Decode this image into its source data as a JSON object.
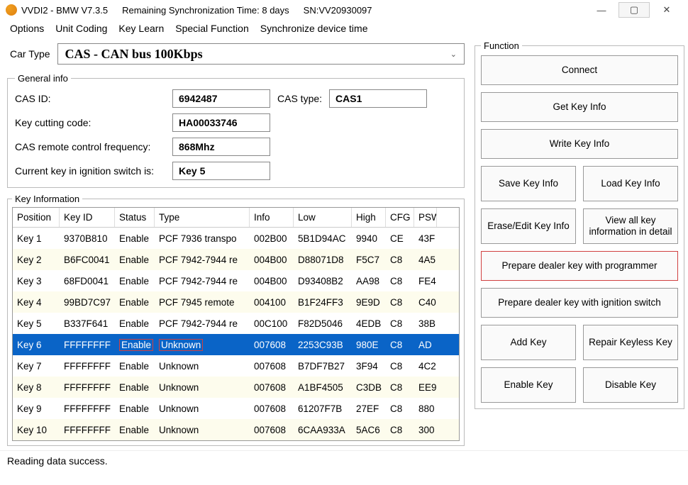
{
  "title": {
    "app": "VVDI2 - BMW V7.3.5",
    "sync": "Remaining Synchronization Time: 8 days",
    "sn": "SN:VV20930097"
  },
  "menu": {
    "options": "Options",
    "unit_coding": "Unit Coding",
    "key_learn": "Key Learn",
    "special_function": "Special Function",
    "sync_time": "Synchronize device time"
  },
  "cartype": {
    "label": "Car Type",
    "value": "CAS - CAN bus 100Kbps"
  },
  "general": {
    "legend": "General info",
    "cas_id_label": "CAS ID:",
    "cas_id": "6942487",
    "cas_type_label": "CAS type:",
    "cas_type": "CAS1",
    "cut_label": "Key cutting code:",
    "cut_code": "HA00033746",
    "freq_label": "CAS remote control frequency:",
    "freq": "868Mhz",
    "ign_label": "Current key in ignition switch is:",
    "ign_key": "Key 5"
  },
  "keyinfo": {
    "legend": "Key Information",
    "cols": {
      "pos": "Position",
      "keyid": "Key ID",
      "status": "Status",
      "type": "Type",
      "info": "Info",
      "low": "Low",
      "high": "High",
      "cfg": "CFG",
      "psw": "PSW"
    },
    "rows": [
      {
        "pos": "Key 1",
        "keyid": "9370B810",
        "status": "Enable",
        "type": "PCF 7936 transpo",
        "info": "002B00",
        "low": "5B1D94AC",
        "high": "9940",
        "cfg": "CE",
        "psw": "43F"
      },
      {
        "pos": "Key 2",
        "keyid": "B6FC0041",
        "status": "Enable",
        "type": "PCF 7942-7944 re",
        "info": "004B00",
        "low": "D88071D8",
        "high": "F5C7",
        "cfg": "C8",
        "psw": "4A5"
      },
      {
        "pos": "Key 3",
        "keyid": "68FD0041",
        "status": "Enable",
        "type": "PCF 7942-7944 re",
        "info": "004B00",
        "low": "D93408B2",
        "high": "AA98",
        "cfg": "C8",
        "psw": "FE4"
      },
      {
        "pos": "Key 4",
        "keyid": "99BD7C97",
        "status": "Enable",
        "type": "PCF 7945 remote",
        "info": "004100",
        "low": "B1F24FF3",
        "high": "9E9D",
        "cfg": "C8",
        "psw": "C40"
      },
      {
        "pos": "Key 5",
        "keyid": "B337F641",
        "status": "Enable",
        "type": "PCF 7942-7944 re",
        "info": "00C100",
        "low": "F82D5046",
        "high": "4EDB",
        "cfg": "C8",
        "psw": "38B"
      },
      {
        "pos": "Key 6",
        "keyid": "FFFFFFFF",
        "status": "Enable",
        "type": "Unknown",
        "info": "007608",
        "low": "2253C93B",
        "high": "980E",
        "cfg": "C8",
        "psw": "AD"
      },
      {
        "pos": "Key 7",
        "keyid": "FFFFFFFF",
        "status": "Enable",
        "type": "Unknown",
        "info": "007608",
        "low": "B7DF7B27",
        "high": "3F94",
        "cfg": "C8",
        "psw": "4C2"
      },
      {
        "pos": "Key 8",
        "keyid": "FFFFFFFF",
        "status": "Enable",
        "type": "Unknown",
        "info": "007608",
        "low": "A1BF4505",
        "high": "C3DB",
        "cfg": "C8",
        "psw": "EE9"
      },
      {
        "pos": "Key 9",
        "keyid": "FFFFFFFF",
        "status": "Enable",
        "type": "Unknown",
        "info": "007608",
        "low": "61207F7B",
        "high": "27EF",
        "cfg": "C8",
        "psw": "880"
      },
      {
        "pos": "Key 10",
        "keyid": "FFFFFFFF",
        "status": "Enable",
        "type": "Unknown",
        "info": "007608",
        "low": "6CAA933A",
        "high": "5AC6",
        "cfg": "C8",
        "psw": "300"
      }
    ],
    "selected_index": 5
  },
  "func": {
    "legend": "Function",
    "connect": "Connect",
    "get_key_info": "Get Key Info",
    "write_key_info": "Write Key Info",
    "save_key_info": "Save Key Info",
    "load_key_info": "Load Key Info",
    "erase_edit": "Erase/Edit Key Info",
    "view_all": "View all key information in detail",
    "prep_prog": "Prepare dealer key with programmer",
    "prep_ign": "Prepare dealer key with ignition switch",
    "add_key": "Add Key",
    "repair_keyless": "Repair Keyless Key",
    "enable_key": "Enable Key",
    "disable_key": "Disable Key"
  },
  "status": "Reading data success.",
  "colors": {
    "selection": "#0a64c7",
    "stripe": "#fdfced",
    "highlight_border": "#d04040"
  }
}
